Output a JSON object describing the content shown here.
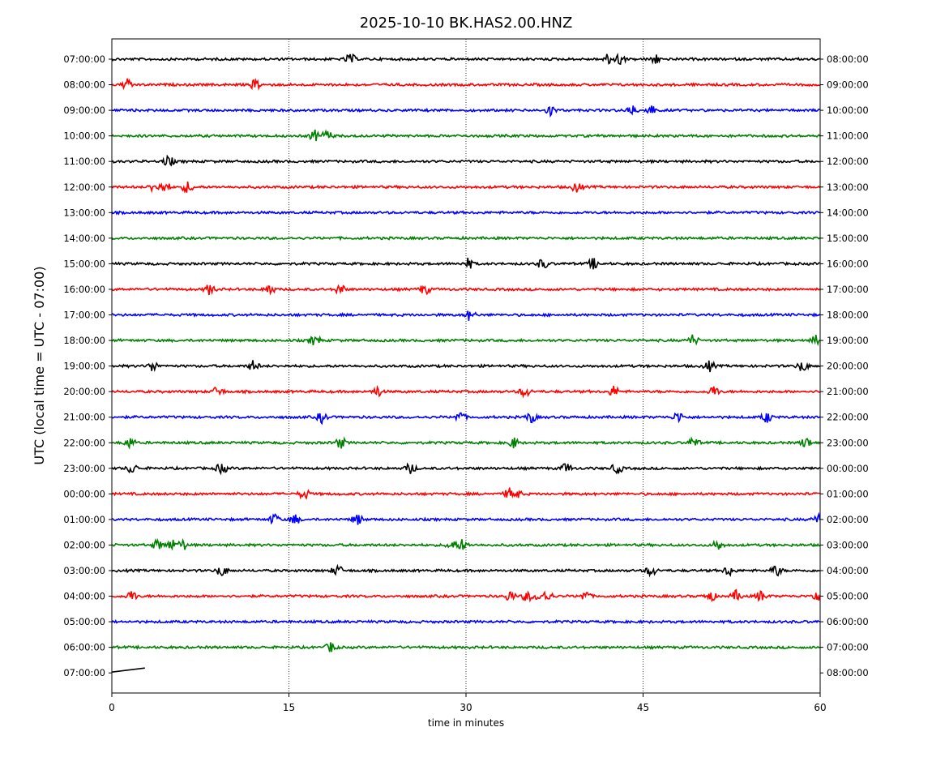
{
  "chart_data": {
    "type": "line",
    "title": "2025-10-10 BK.HAS2.00.HNZ",
    "xlabel": "time in minutes",
    "ylabel": "UTC (local time = UTC - 07:00)",
    "xlim": [
      0,
      60
    ],
    "x_ticks": [
      "0",
      "15",
      "30",
      "45",
      "60"
    ],
    "grid": "vertical dotted lines at 15, 30, 45",
    "line_colors": [
      "#000000",
      "#ff0000",
      "#0000ff",
      "#008000"
    ],
    "rows": [
      {
        "left": "07:00:00",
        "right": "08:00:00",
        "color": "#000000",
        "events": [
          20.2,
          42.1,
          43.0,
          46.0
        ]
      },
      {
        "left": "08:00:00",
        "right": "09:00:00",
        "color": "#ff0000",
        "events": [
          1.3,
          12.2
        ]
      },
      {
        "left": "09:00:00",
        "right": "10:00:00",
        "color": "#0000ff",
        "events": [
          37.2,
          44.0,
          45.6
        ]
      },
      {
        "left": "10:00:00",
        "right": "11:00:00",
        "color": "#008000",
        "events": [
          17.2,
          18.2
        ]
      },
      {
        "left": "11:00:00",
        "right": "12:00:00",
        "color": "#000000",
        "events": [
          4.8
        ]
      },
      {
        "left": "12:00:00",
        "right": "13:00:00",
        "color": "#ff0000",
        "events": [
          3.6,
          4.5,
          6.4,
          39.4
        ]
      },
      {
        "left": "13:00:00",
        "right": "14:00:00",
        "color": "#0000ff",
        "events": []
      },
      {
        "left": "14:00:00",
        "right": "15:00:00",
        "color": "#008000",
        "events": []
      },
      {
        "left": "15:00:00",
        "right": "16:00:00",
        "color": "#000000",
        "events": [
          30.2,
          36.5,
          40.8
        ]
      },
      {
        "left": "16:00:00",
        "right": "17:00:00",
        "color": "#ff0000",
        "events": [
          8.3,
          13.3,
          19.3,
          26.5
        ]
      },
      {
        "left": "17:00:00",
        "right": "18:00:00",
        "color": "#0000ff",
        "events": [
          30.3
        ]
      },
      {
        "left": "18:00:00",
        "right": "19:00:00",
        "color": "#008000",
        "events": [
          17.2,
          49.2,
          59.7
        ]
      },
      {
        "left": "19:00:00",
        "right": "20:00:00",
        "color": "#000000",
        "events": [
          3.5,
          12.0,
          50.6,
          58.5
        ]
      },
      {
        "left": "20:00:00",
        "right": "21:00:00",
        "color": "#ff0000",
        "events": [
          9.0,
          22.5,
          35.0,
          42.5,
          51.0
        ]
      },
      {
        "left": "21:00:00",
        "right": "22:00:00",
        "color": "#0000ff",
        "events": [
          17.8,
          29.5,
          35.5,
          48.0,
          55.5
        ]
      },
      {
        "left": "22:00:00",
        "right": "23:00:00",
        "color": "#008000",
        "events": [
          1.5,
          19.4,
          34.0,
          49.3,
          58.8
        ]
      },
      {
        "left": "23:00:00",
        "right": "00:00:00",
        "color": "#000000",
        "events": [
          1.7,
          9.3,
          25.3,
          38.5,
          42.8
        ]
      },
      {
        "left": "00:00:00",
        "right": "01:00:00",
        "color": "#ff0000",
        "events": [
          16.3,
          33.7,
          34.2
        ]
      },
      {
        "left": "01:00:00",
        "right": "02:00:00",
        "color": "#0000ff",
        "events": [
          13.8,
          15.5,
          20.8,
          59.8
        ]
      },
      {
        "left": "02:00:00",
        "right": "03:00:00",
        "color": "#008000",
        "events": [
          3.9,
          5.1,
          6.0,
          28.8,
          29.7,
          51.3
        ]
      },
      {
        "left": "03:00:00",
        "right": "04:00:00",
        "color": "#000000",
        "events": [
          9.3,
          19.1,
          45.7,
          52.3,
          56.3
        ]
      },
      {
        "left": "04:00:00",
        "right": "05:00:00",
        "color": "#ff0000",
        "events": [
          1.7,
          33.7,
          35.2,
          36.3,
          36.9,
          40.1,
          50.7,
          52.9,
          55.0,
          59.7
        ]
      },
      {
        "left": "05:00:00",
        "right": "06:00:00",
        "color": "#0000ff",
        "events": []
      },
      {
        "left": "06:00:00",
        "right": "07:00:00",
        "color": "#008000",
        "events": [
          18.6
        ]
      },
      {
        "left": "07:00:00",
        "right": "08:00:00",
        "color": "#000000",
        "events": [],
        "ends_at": 2.8
      }
    ]
  }
}
